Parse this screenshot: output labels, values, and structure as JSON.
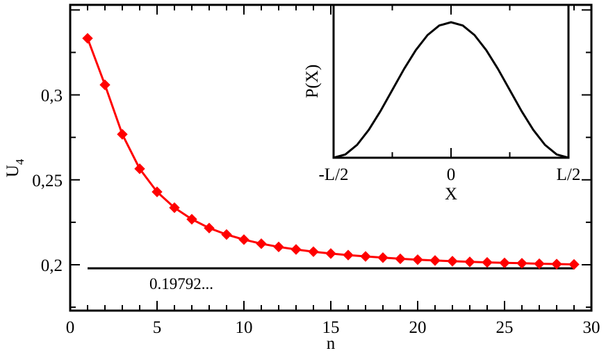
{
  "chart_data": [
    {
      "type": "line",
      "title": "",
      "xlabel": "n",
      "ylabel": "U",
      "ylabel_sub": "4",
      "xlim": [
        0,
        30
      ],
      "ylim": [
        0.173,
        0.353
      ],
      "xticks": [
        0,
        5,
        10,
        15,
        20,
        25,
        30
      ],
      "xtick_labels": [
        "0",
        "5",
        "10",
        "15",
        "20",
        "25",
        "30"
      ],
      "yticks": [
        0.2,
        0.25,
        0.3
      ],
      "ytick_labels": [
        "0,2",
        "0,25",
        "0,3"
      ],
      "grid": false,
      "series": [
        {
          "color": "#ff0000",
          "marker": "diamond",
          "x": [
            1,
            2,
            3,
            4,
            5,
            6,
            7,
            8,
            9,
            10,
            11,
            12,
            13,
            14,
            15,
            16,
            17,
            18,
            19,
            20,
            21,
            22,
            23,
            24,
            25,
            26,
            27,
            28,
            29
          ],
          "y": [
            0.3333,
            0.3059,
            0.2768,
            0.2565,
            0.2429,
            0.2336,
            0.2268,
            0.2216,
            0.2178,
            0.2148,
            0.2124,
            0.2105,
            0.209,
            0.2077,
            0.2066,
            0.2057,
            0.2049,
            0.2042,
            0.2035,
            0.203,
            0.2025,
            0.2021,
            0.2017,
            0.2014,
            0.2011,
            0.2009,
            0.2006,
            0.2004,
            0.2002
          ]
        }
      ],
      "reference_line": {
        "value": 0.19792,
        "x_range": [
          1,
          29
        ],
        "color": "#000000",
        "label": "0.19792..."
      }
    },
    {
      "type": "line",
      "title": "",
      "xlabel": "X",
      "ylabel": "P(X)",
      "xlim": [
        -0.5,
        0.5
      ],
      "xticks": [
        -0.5,
        0,
        0.5
      ],
      "xtick_labels": [
        "-L/2",
        "0",
        "L/2"
      ],
      "grid": false,
      "series": [
        {
          "color": "#000000",
          "x": [
            -0.5,
            -0.45,
            -0.4,
            -0.35,
            -0.3,
            -0.25,
            -0.2,
            -0.15,
            -0.1,
            -0.05,
            0,
            0.05,
            0.1,
            0.15,
            0.2,
            0.25,
            0.3,
            0.35,
            0.4,
            0.45,
            0.5
          ],
          "y": [
            0,
            0.024,
            0.095,
            0.206,
            0.345,
            0.5,
            0.655,
            0.794,
            0.905,
            0.976,
            1,
            0.976,
            0.905,
            0.794,
            0.655,
            0.5,
            0.345,
            0.206,
            0.095,
            0.024,
            0
          ]
        }
      ]
    }
  ]
}
